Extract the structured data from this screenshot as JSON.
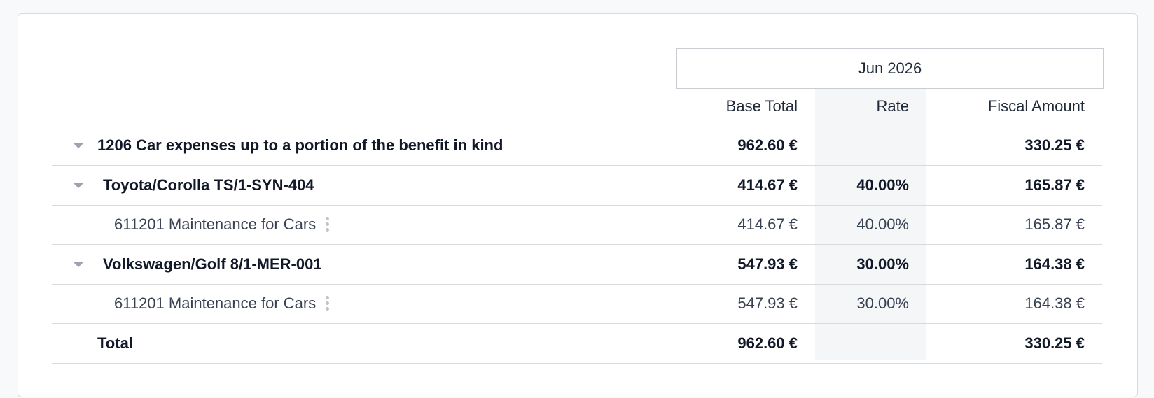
{
  "header": {
    "period": "Jun 2026",
    "columns": [
      "Base Total",
      "Rate",
      "Fiscal Amount"
    ]
  },
  "rows": [
    {
      "label": "1206 Car expenses up to a portion of the benefit in kind",
      "base_total": "962.60 €",
      "fiscal_amount": "330.25 €",
      "level": 0,
      "bold": true,
      "caret": true
    },
    {
      "label": "Toyota/Corolla TS/1-SYN-404",
      "base_total": "414.67 €",
      "rate": "40.00%",
      "fiscal_amount": "165.87 €",
      "level": 1,
      "bold": true,
      "caret": true
    },
    {
      "label": "611201 Maintenance for Cars",
      "base_total": "414.67 €",
      "rate": "40.00%",
      "fiscal_amount": "165.87 €",
      "level": 2,
      "bold": false,
      "caret": false
    },
    {
      "label": "Volkswagen/Golf 8/1-MER-001",
      "base_total": "547.93 €",
      "rate": "30.00%",
      "fiscal_amount": "164.38 €",
      "level": 1,
      "bold": true,
      "caret": true
    },
    {
      "label": "611201 Maintenance for Cars",
      "base_total": "547.93 €",
      "rate": "30.00%",
      "fiscal_amount": "164.38 €",
      "level": 2,
      "bold": false,
      "caret": false
    },
    {
      "label": "Total",
      "base_total": "962.60 €",
      "fiscal_amount": "330.25 €",
      "level": 0,
      "bold": true,
      "caret": false
    }
  ]
}
